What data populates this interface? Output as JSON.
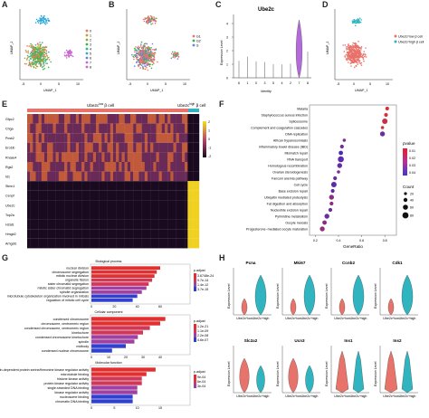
{
  "panels": {
    "A": {
      "label": "A",
      "xlabel": "UMAP_1",
      "ylabel": "UMAP_2",
      "xticks": [
        "-5",
        "0",
        "5",
        "10"
      ],
      "yticks": [
        "-5",
        "0",
        "5",
        "10"
      ],
      "legend": [
        "0",
        "1",
        "2",
        "3",
        "4",
        "5",
        "6",
        "7",
        "8"
      ],
      "colors": [
        "#e8736b",
        "#c49a3a",
        "#8fae2f",
        "#3bb54a",
        "#30b49a",
        "#2fa8d8",
        "#5f84e8",
        "#c067e0",
        "#e062b6"
      ]
    },
    "B": {
      "label": "B",
      "xlabel": "UMAP_1",
      "ylabel": "UMAP_2",
      "xticks": [
        "-5",
        "0",
        "5",
        "10"
      ],
      "yticks": [
        "-5",
        "0",
        "5",
        "10"
      ],
      "legend": [
        "G1",
        "G2",
        "S"
      ],
      "colors": [
        "#e8736b",
        "#35b04a",
        "#5f84e8"
      ]
    },
    "C": {
      "label": "C",
      "title": "Ube2c",
      "xlabel": "Identity",
      "ylabel": "Expression Level",
      "categories": [
        "6",
        "1",
        "0",
        "3",
        "5",
        "4",
        "2",
        "7",
        "8"
      ],
      "yticks": [
        "0",
        "1",
        "2",
        "3",
        "4"
      ],
      "highlight_color": "#b46ad8"
    },
    "D": {
      "label": "D",
      "xlabel": "UMAP_1",
      "ylabel": "UMAP_2",
      "xticks": [
        "-5",
        "0",
        "5",
        "10"
      ],
      "yticks": [
        "-5",
        "0",
        "5",
        "10"
      ],
      "legend": [
        "Ube2c^low β cell",
        "Ube2c^high β cell"
      ],
      "colors": [
        "#e8736b",
        "#30b4c0"
      ]
    },
    "E": {
      "label": "E",
      "group_low": "Ube2c",
      "group_low_sup": "low",
      "group_low_suffix": " β cell",
      "group_high": "Ube2c",
      "group_high_sup": "high",
      "group_high_suffix": " β cell",
      "genes": [
        "Gfpc2",
        "Chga",
        "Pcsk2",
        "Ero1lb",
        "Rnase4",
        "Rgs2",
        "Id1",
        "Stmn1",
        "Cenpf",
        "Ube2c",
        "Top2a",
        "H2afz",
        "Hmgb2",
        "Arhgdi1"
      ],
      "colorbar": [
        "2",
        "1",
        "0",
        "-1",
        "-2"
      ]
    },
    "F": {
      "label": "F",
      "xlabel": "GeneRatio",
      "xticks": [
        "0.2",
        "0.4",
        "0.6",
        "0.8"
      ],
      "terms": [
        "Malaria",
        "Staphylococcus aureus infection",
        "Spliceosome",
        "Complement and coagulation cascades",
        "DNA replication",
        "African trypanosomiasis",
        "Inflammatory bowel disease (IBD)",
        "Mismatch repair",
        "RNA transport",
        "Homologous recombination",
        "Ovarian steroidogenesis",
        "Fanconi anemia pathway",
        "Cell cycle",
        "Base excision repair",
        "Ubiquitin mediated proteolysis",
        "Fat digestion and absorption",
        "Nucleotide excision repair",
        "Pyrimidine metabolism",
        "Oocyte meiosis",
        "Progesterone−mediated oocyte maturation"
      ],
      "gene_ratio": [
        0.82,
        0.81,
        0.8,
        0.78,
        0.78,
        0.45,
        0.43,
        0.42,
        0.42,
        0.41,
        0.4,
        0.37,
        0.36,
        0.35,
        0.34,
        0.34,
        0.33,
        0.3,
        0.28,
        0.26
      ],
      "count": [
        30,
        30,
        60,
        20,
        50,
        20,
        30,
        40,
        70,
        50,
        20,
        30,
        60,
        30,
        50,
        30,
        30,
        50,
        40,
        50
      ],
      "pvalue_rank": [
        0.95,
        0.95,
        0.85,
        0.9,
        0.3,
        0.4,
        0.35,
        0.1,
        0.2,
        0.25,
        0.4,
        0.3,
        0.2,
        0.2,
        0.5,
        0.5,
        0.3,
        0.3,
        0.45,
        0.55
      ],
      "pvalue_title": "pvalue",
      "pvalue_ticks": [
        "0.01",
        "0.02",
        "0.03",
        "0.04"
      ],
      "count_title": "Count",
      "count_ticks": [
        "20",
        "40",
        "60",
        "80"
      ]
    },
    "G": {
      "label": "G",
      "sections": [
        {
          "title": "Biological process",
          "terms": [
            "nuclear division",
            "chromosome segregation",
            "mitotic nuclear division",
            "organelle fission",
            "sister chromatid segregation",
            "mitotic sister chromatid segregation",
            "spindle organization",
            "microtubule cytoskeleton organization involved in mitosis",
            "regulation of mitotic cell cycle"
          ],
          "values": [
            60,
            57,
            55,
            53,
            50,
            48,
            44,
            40,
            36
          ],
          "padj": [
            "3.6748e-24",
            "9.7e-14",
            "1.4e-12",
            "3.7e-15"
          ],
          "xticks": [
            "0",
            "20",
            "40",
            "60"
          ]
        },
        {
          "title": "Cellular component",
          "terms": [
            "condensed chromosome",
            "chromosome, centromeric region",
            "condensed chromosome, centromeric region",
            "kinetochore",
            "condensed chromosome kinetochore",
            "spindle",
            "midbody",
            "condensed nuclear chromosome"
          ],
          "values": [
            43,
            40,
            34,
            30,
            27,
            25,
            20,
            12
          ],
          "padj": [
            "1.2e-21",
            "1.1e-09",
            "2.2e-08",
            "4.6e-07"
          ],
          "xticks": [
            "0",
            "10",
            "20",
            "30",
            "40"
          ]
        },
        {
          "title": "Molecular function",
          "terms": [
            "cyclin-dependent protein serine/threonine kinase regulator activity",
            "microtubule binding",
            "histone kinase activity",
            "protein kinase regulator activity",
            "single-stranded DNA binding",
            "kinase regulator activity",
            "nucleosome binding",
            "chromatin DNA binding"
          ],
          "values": [
            14,
            12,
            11,
            11,
            10,
            10,
            9,
            9
          ],
          "padj": [
            "9e-04",
            "6e-04",
            "3e-04"
          ],
          "xticks": [
            "0",
            "5",
            "10",
            "15"
          ]
        }
      ]
    },
    "H": {
      "label": "H",
      "ylabel": "Expression Level",
      "groups": [
        "Ube2c^low",
        "Ube2c^high"
      ],
      "genes": [
        "Pcna",
        "Mki67",
        "Ccnb2",
        "Cdk1",
        "Slc2a2",
        "Ucn3",
        "Ins1",
        "Ins2"
      ],
      "colors": [
        "#e8736b",
        "#30b4c0"
      ]
    }
  }
}
